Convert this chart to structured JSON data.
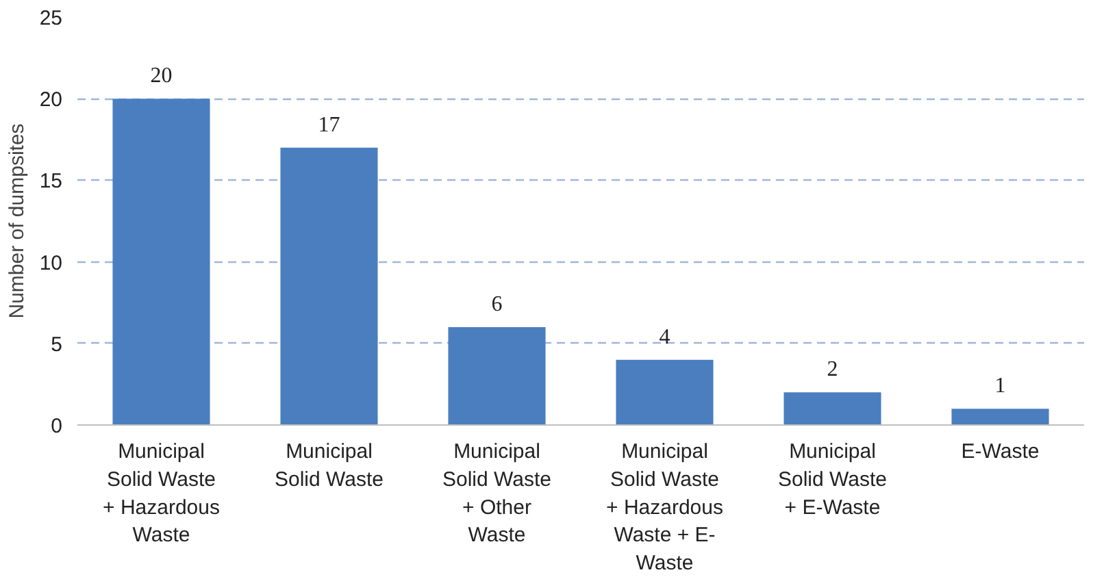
{
  "chart_data": {
    "type": "bar",
    "ylabel": "Number of dumpsites",
    "categories": [
      "Municipal\nSolid Waste\n+ Hazardous\nWaste",
      "Municipal\nSolid Waste",
      "Municipal\nSolid Waste\n+ Other\nWaste",
      "Municipal\nSolid Waste\n+ Hazardous\nWaste + E-\nWaste",
      "Municipal\nSolid Waste\n+ E-Waste",
      "E-Waste"
    ],
    "values": [
      20,
      17,
      6,
      4,
      2,
      1
    ],
    "color": "#4a7ebf",
    "ylim": [
      0,
      25
    ],
    "yticks": [
      0,
      5,
      10,
      15,
      20,
      25
    ],
    "grid": "y",
    "data_labels": true
  }
}
